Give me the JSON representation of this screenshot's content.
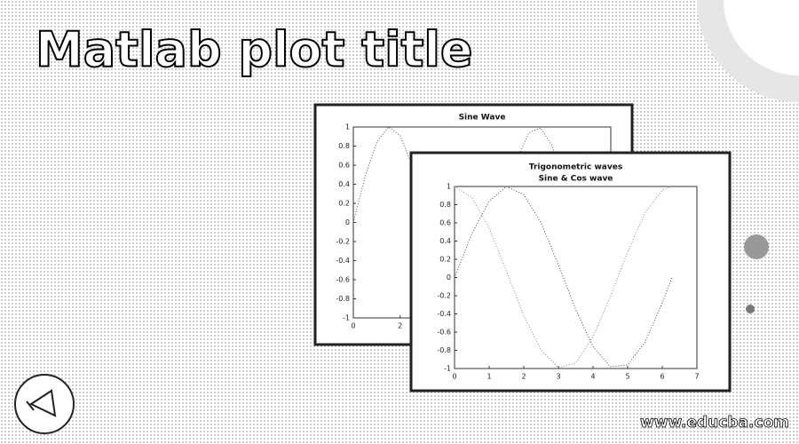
{
  "title": "Matlab plot title",
  "watermark": "www.educba.com",
  "chart_data": [
    {
      "type": "line",
      "title": "Sine Wave",
      "x": [
        0,
        0.5,
        1,
        1.5,
        2,
        2.5,
        3,
        3.5,
        4,
        4.5,
        5,
        5.5,
        6,
        6.5,
        7,
        7.5,
        8,
        8.5,
        9,
        9.5,
        10
      ],
      "series": [
        {
          "color": "#555555",
          "values": [
            0,
            0.48,
            0.84,
            1.0,
            0.91,
            0.6,
            0.14,
            -0.35,
            -0.76,
            -0.98,
            -0.96,
            -0.71,
            -0.28,
            0.22,
            0.66,
            0.94,
            0.99,
            0.8,
            0.41,
            -0.08,
            -0.54
          ]
        }
      ],
      "xlim": [
        0,
        11
      ],
      "xticks": [
        0,
        2
      ],
      "ylim": [
        -1,
        1
      ],
      "yticks": [
        -1,
        -0.8,
        -0.6,
        -0.4,
        -0.2,
        0,
        0.2,
        0.4,
        0.6,
        0.8,
        1
      ]
    },
    {
      "type": "line",
      "title": "Trigonometric waves",
      "subtitle": "Sine & Cos wave",
      "x": [
        0,
        0.5,
        1,
        1.5,
        2,
        2.5,
        3,
        3.5,
        4,
        4.5,
        5,
        5.5,
        6,
        6.28
      ],
      "series": [
        {
          "color": "#444444",
          "values": [
            0,
            0.48,
            0.84,
            1.0,
            0.91,
            0.6,
            0.14,
            -0.35,
            -0.76,
            -0.98,
            -0.96,
            -0.71,
            -0.28,
            0
          ]
        },
        {
          "color": "#888888",
          "values": [
            1,
            0.88,
            0.54,
            0.07,
            -0.42,
            -0.8,
            -0.99,
            -0.94,
            -0.65,
            -0.21,
            0.28,
            0.71,
            0.96,
            1
          ]
        }
      ],
      "xlim": [
        0,
        7
      ],
      "xticks": [
        0,
        1,
        2,
        3,
        4,
        5,
        6,
        7
      ],
      "ylim": [
        -1,
        1
      ],
      "yticks": [
        -1,
        -0.8,
        -0.6,
        -0.4,
        -0.2,
        0,
        0.2,
        0.4,
        0.6,
        0.8,
        1
      ]
    }
  ]
}
